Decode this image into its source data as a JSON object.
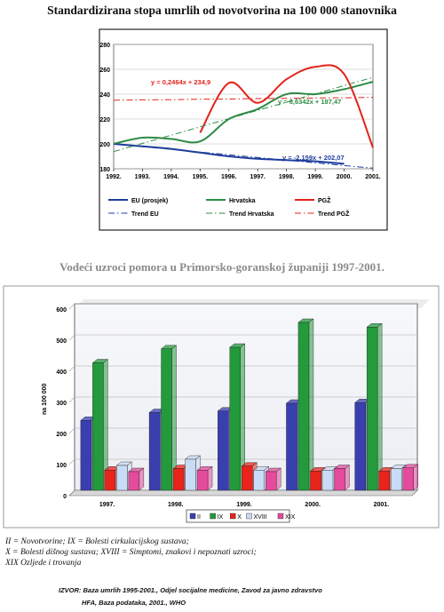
{
  "chart_data": [
    {
      "type": "line",
      "title": "Standardizirana stopa umrlih od novotvorina na 100 000 stanovnika",
      "x": [
        "1992.",
        "1993.",
        "1994.",
        "1995.",
        "1996.",
        "1997.",
        "1998.",
        "1999.",
        "2000.",
        "2001."
      ],
      "ylim": [
        180,
        280
      ],
      "yticks": [
        180,
        200,
        220,
        240,
        260,
        280
      ],
      "series": [
        {
          "name": "EU (prosjek)",
          "color": "#1f3d9c",
          "style": "solid",
          "values": [
            200,
            198,
            196,
            193,
            190,
            188,
            187,
            186,
            184,
            null
          ]
        },
        {
          "name": "Hrvatska",
          "color": "#2e8b45",
          "style": "solid",
          "values": [
            200,
            205,
            204,
            202,
            220,
            228,
            240,
            240,
            244,
            250
          ]
        },
        {
          "name": "PGŽ",
          "color": "#e2231a",
          "style": "solid",
          "values": [
            null,
            null,
            null,
            209,
            249,
            233,
            252,
            262,
            256,
            197
          ]
        },
        {
          "name": "Trend EU",
          "color": "#1f3d9c",
          "style": "dashdot",
          "values": [
            199.9,
            197.8,
            195.6,
            193.4,
            191.3,
            189.1,
            186.9,
            184.8,
            182.6,
            180.5
          ]
        },
        {
          "name": "Trend Hrvatska",
          "color": "#2e8b45",
          "style": "dashdot",
          "values": [
            193.8,
            200.4,
            207.0,
            213.7,
            220.3,
            227.0,
            233.6,
            240.2,
            246.9,
            253.5
          ]
        },
        {
          "name": "Trend PGŽ",
          "color": "#e2231a",
          "style": "dashdot",
          "values": [
            235.1,
            235.4,
            235.6,
            235.9,
            236.1,
            236.4,
            236.6,
            236.9,
            237.1,
            237.4
          ]
        }
      ],
      "annotations": [
        {
          "text": "y = 0,2464x + 234,9",
          "color": "#e2231a"
        },
        {
          "text": "y = 6,6342x + 187,47",
          "color": "#2e8b45"
        },
        {
          "text": "y = -2,159x + 202,07",
          "color": "#1f3d9c"
        }
      ],
      "legend": "bottom"
    },
    {
      "type": "bar",
      "title": "Vodeći uzroci pomora u Primorsko-goranskoj županiji 1997-2001.",
      "categories": [
        "1997.",
        "1998.",
        "1999.",
        "2000.",
        "2001."
      ],
      "ylabel": "na 100 000",
      "ylim": [
        0,
        600
      ],
      "yticks": [
        0,
        100,
        200,
        300,
        400,
        500,
        600
      ],
      "series": [
        {
          "name": "II",
          "color": "#3a3fb0",
          "values": [
            225,
            250,
            255,
            280,
            282
          ]
        },
        {
          "name": "IX",
          "color": "#239a3c",
          "values": [
            410,
            455,
            460,
            540,
            525
          ]
        },
        {
          "name": "X",
          "color": "#e8241c",
          "values": [
            65,
            70,
            78,
            62,
            62
          ]
        },
        {
          "name": "XVIII",
          "color": "#c9dcf5",
          "values": [
            80,
            100,
            65,
            65,
            70
          ]
        },
        {
          "name": "XIX",
          "color": "#e44b9c",
          "values": [
            60,
            65,
            60,
            70,
            72
          ]
        }
      ],
      "legend": "bottom"
    }
  ],
  "notes": [
    "II = Novotvorine; IX = Bolesti cirkulacijskog sustava;",
    "X = Bolesti dišnog sustava; XVIII = Simptomi, znakovi i nepoznati uzroci;",
    "XIX Ozljede i trovanja"
  ],
  "source": {
    "line1": "IZVOR: Baza umrlih 1995-2001., Odjel socijalne medicine, Zavod za javno zdravstvo",
    "line2": "HFA, Baza podataka, 2001., WHO"
  }
}
